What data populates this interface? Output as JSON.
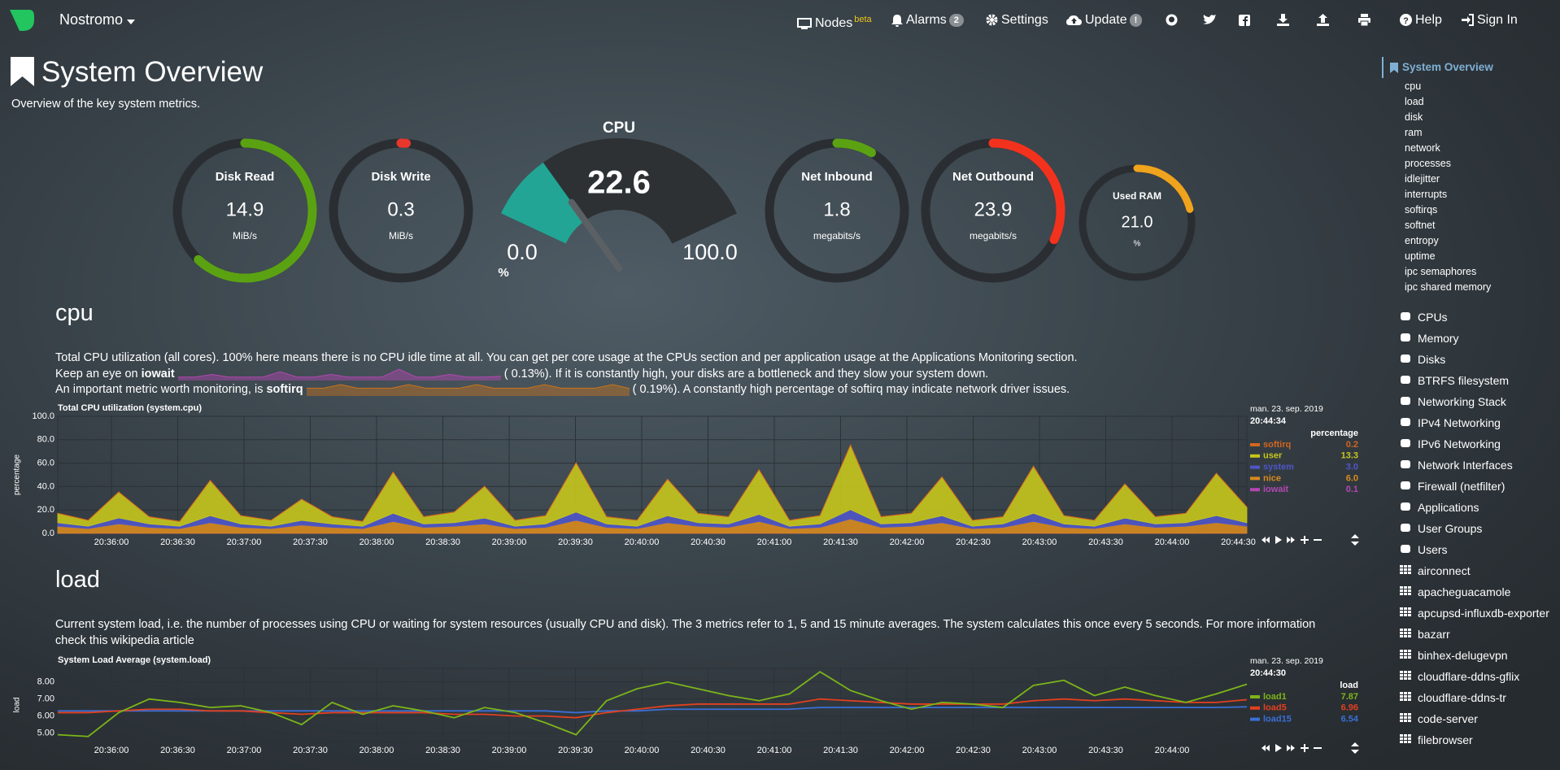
{
  "navbar": {
    "brand": "Nostromo",
    "items": [
      {
        "label": "Nodes",
        "badge": "beta"
      },
      {
        "label": "Alarms",
        "badge": "2"
      },
      {
        "label": "Settings"
      },
      {
        "label": "Update",
        "badge": "!"
      },
      {
        "label": "Help"
      },
      {
        "label": "Sign In"
      }
    ]
  },
  "header": {
    "title": "System Overview",
    "subtitle": "Overview of the key system metrics."
  },
  "gauges": [
    {
      "title": "Disk Read",
      "value": 14.9,
      "units": "MiB/s",
      "max": 24,
      "color": "#5ba212"
    },
    {
      "title": "Disk Write",
      "value": 0.3,
      "units": "MiB/s",
      "max": 24,
      "color": "#e8372c"
    },
    {
      "title": "Net Inbound",
      "value": 1.8,
      "units": "megabits/s",
      "max": 21,
      "color": "#5ba212"
    },
    {
      "title": "Net Outbound",
      "value": 23.9,
      "units": "megabits/s",
      "max": 74.5,
      "color": "#f3321e"
    },
    {
      "title": "Used RAM",
      "value": 21.0,
      "value_label": "21.0",
      "units": "%",
      "max": 100,
      "color": "#f0a31c"
    }
  ],
  "cpu_gauge": {
    "title": "CPU",
    "value": 22.6,
    "min": {
      "value": 0,
      "label": "0.0"
    },
    "max": {
      "value": 100,
      "label": "100.0"
    },
    "units": "%",
    "color": "#22a594"
  },
  "cpu_section": {
    "heading": "cpu",
    "p1": "Total CPU utilization (all cores). 100% here means there is no CPU idle time at all. You can get per core usage at the CPUs section and per application usage at the Applications Monitoring section.",
    "p2": {
      "before": "Keep an eye on ",
      "term": "iowait",
      "color": "#b347b3",
      "sparkline": [
        0.1,
        0.1,
        0.2,
        0.1,
        0.1,
        0.1,
        0.3,
        0.1,
        0.1,
        0.2,
        0.1,
        0.1,
        0.1,
        0.4,
        0.1,
        0.1,
        0.2,
        0.1,
        0.1,
        0.13
      ],
      "after": "( 0.13%). If it is constantly high, your disks are a bottleneck and they slow your system down."
    },
    "p3": {
      "before": "An important metric worth monitoring, is ",
      "term": "softirq",
      "color": "#c8741c",
      "sparkline": [
        0.2,
        0.2,
        0.3,
        0.2,
        0.2,
        0.2,
        0.3,
        0.2,
        0.2,
        0.2,
        0.3,
        0.2,
        0.2,
        0.2,
        0.3,
        0.2,
        0.2,
        0.2,
        0.3,
        0.19
      ],
      "after": "( 0.19%). A constantly high percentage of softirq may indicate network driver issues."
    }
  },
  "cpu_chart": {
    "type": "stacked-area",
    "title": "Total CPU utilization (system.cpu)",
    "ylabel": "percentage",
    "ylim": [
      0,
      100
    ],
    "yticks": [
      {
        "value": 0,
        "label": "0.0"
      },
      {
        "value": 20,
        "label": "20.0"
      },
      {
        "value": 40,
        "label": "40.0"
      },
      {
        "value": 60,
        "label": "60.0"
      },
      {
        "value": 80,
        "label": "80.0"
      },
      {
        "value": 100,
        "label": "100.0"
      }
    ],
    "xticks": [
      "20:36:00",
      "20:36:30",
      "20:37:00",
      "20:37:30",
      "20:38:00",
      "20:38:30",
      "20:39:00",
      "20:39:30",
      "20:40:00",
      "20:40:30",
      "20:41:00",
      "20:41:30",
      "20:42:00",
      "20:42:30",
      "20:43:00",
      "20:43:30",
      "20:44:00",
      "20:44:30"
    ],
    "date": "man. 23. sep. 2019",
    "time": "20:44:34",
    "units": "percentage",
    "series": [
      {
        "name": "softirq",
        "color": "#d2661e",
        "legend_value": "0.2",
        "values": [
          0.2,
          0.2,
          0.3,
          0.2,
          0.2,
          0.3,
          0.2,
          0.2,
          0.2,
          0.2,
          0.2,
          0.3,
          0.2,
          0.2,
          0.3,
          0.2,
          0.2,
          0.3,
          0.2,
          0.2,
          0.3,
          0.2,
          0.2,
          0.3,
          0.2,
          0.2,
          0.4,
          0.2,
          0.2,
          0.3,
          0.2,
          0.2,
          0.3,
          0.2,
          0.2,
          0.3,
          0.2,
          0.2,
          0.3,
          0.2
        ]
      },
      {
        "name": "user",
        "color": "#c6c61c",
        "legend_value": "13.3",
        "values": [
          8,
          5,
          22,
          6,
          4,
          30,
          7,
          5,
          18,
          6,
          4,
          35,
          6,
          9,
          27,
          5,
          7,
          42,
          6,
          5,
          31,
          8,
          6,
          38,
          5,
          7,
          55,
          6,
          8,
          33,
          5,
          6,
          40,
          7,
          5,
          29,
          6,
          8,
          36,
          13.3
        ]
      },
      {
        "name": "system",
        "color": "#4f56c9",
        "legend_value": "3.0",
        "values": [
          3,
          2,
          5,
          3,
          2,
          6,
          3,
          2,
          4,
          3,
          2,
          7,
          3,
          3,
          5,
          2,
          3,
          7,
          3,
          2,
          6,
          3,
          3,
          6,
          2,
          3,
          8,
          3,
          3,
          6,
          2,
          3,
          7,
          3,
          2,
          5,
          3,
          3,
          6,
          3
        ]
      },
      {
        "name": "nice",
        "color": "#d88a1e",
        "legend_value": "6.0",
        "values": [
          6,
          4,
          8,
          5,
          4,
          9,
          5,
          4,
          7,
          5,
          4,
          10,
          5,
          6,
          8,
          4,
          5,
          11,
          5,
          4,
          9,
          6,
          5,
          10,
          4,
          5,
          12,
          5,
          6,
          9,
          4,
          5,
          10,
          5,
          4,
          8,
          5,
          6,
          9,
          6
        ]
      },
      {
        "name": "iowait",
        "color": "#b347b3",
        "legend_value": "0.1",
        "values": [
          0.1,
          0.1,
          0.2,
          0.1,
          0.1,
          0.1,
          0.1,
          0.1,
          0.1,
          0.1,
          0.1,
          0.2,
          0.1,
          0.1,
          0.1,
          0.1,
          0.1,
          0.2,
          0.1,
          0.1,
          0.1,
          0.1,
          0.1,
          0.2,
          0.1,
          0.1,
          0.3,
          0.1,
          0.1,
          0.1,
          0.1,
          0.1,
          0.2,
          0.1,
          0.1,
          0.1,
          0.1,
          0.1,
          0.2,
          0.1
        ]
      }
    ]
  },
  "load_section": {
    "heading": "load",
    "p1": "Current system load, i.e. the number of processes using CPU or waiting for system resources (usually CPU and disk). The 3 metrics refer to 1, 5 and 15 minute averages. The system calculates this once every 5 seconds. For more information check this wikipedia article"
  },
  "load_chart": {
    "type": "line",
    "title": "System Load Average (system.load)",
    "ylabel": "load",
    "ylim": [
      4.5,
      8.8
    ],
    "yticks": [
      {
        "value": 5,
        "label": "5.00"
      },
      {
        "value": 6,
        "label": "6.00"
      },
      {
        "value": 7,
        "label": "7.00"
      },
      {
        "value": 8,
        "label": "8.00"
      }
    ],
    "xticks": [
      "20:36:00",
      "20:36:30",
      "20:37:00",
      "20:37:30",
      "20:38:00",
      "20:38:30",
      "20:39:00",
      "20:39:30",
      "20:40:00",
      "20:40:30",
      "20:41:00",
      "20:41:30",
      "20:42:00",
      "20:42:30",
      "20:43:00",
      "20:43:30",
      "20:44:00"
    ],
    "date": "man. 23. sep. 2019",
    "time": "20:44:30",
    "units": "load",
    "series": [
      {
        "name": "load1",
        "color": "#7cb518",
        "legend_value": "7.87",
        "values": [
          4.9,
          4.8,
          6.2,
          7.0,
          6.8,
          6.5,
          6.6,
          6.2,
          5.5,
          6.8,
          6.1,
          6.6,
          6.3,
          5.9,
          6.5,
          6.2,
          5.6,
          4.9,
          6.9,
          7.6,
          8.0,
          7.6,
          7.2,
          6.9,
          7.3,
          8.6,
          7.5,
          6.9,
          6.4,
          6.8,
          6.7,
          6.5,
          7.8,
          8.1,
          7.2,
          7.7,
          7.2,
          6.8,
          7.3,
          7.87
        ]
      },
      {
        "name": "load5",
        "color": "#e2401f",
        "legend_value": "6.96",
        "values": [
          6.2,
          6.2,
          6.3,
          6.4,
          6.4,
          6.3,
          6.3,
          6.2,
          6.1,
          6.2,
          6.2,
          6.2,
          6.2,
          6.1,
          6.1,
          6.0,
          6.0,
          5.9,
          6.2,
          6.4,
          6.6,
          6.7,
          6.7,
          6.7,
          6.7,
          7.0,
          6.9,
          6.8,
          6.7,
          6.7,
          6.7,
          6.7,
          6.9,
          7.0,
          6.9,
          7.0,
          6.9,
          6.8,
          6.8,
          6.96
        ]
      },
      {
        "name": "load15",
        "color": "#3b6fd6",
        "legend_value": "6.54",
        "values": [
          6.3,
          6.3,
          6.3,
          6.3,
          6.3,
          6.3,
          6.3,
          6.3,
          6.3,
          6.3,
          6.3,
          6.3,
          6.3,
          6.3,
          6.3,
          6.3,
          6.3,
          6.2,
          6.3,
          6.3,
          6.4,
          6.4,
          6.4,
          6.4,
          6.4,
          6.5,
          6.5,
          6.5,
          6.5,
          6.5,
          6.5,
          6.5,
          6.5,
          6.5,
          6.5,
          6.5,
          6.5,
          6.5,
          6.5,
          6.54
        ]
      }
    ]
  },
  "sidebar": {
    "active": "System Overview",
    "subitems": [
      "cpu",
      "load",
      "disk",
      "ram",
      "network",
      "processes",
      "idlejitter",
      "interrupts",
      "softirqs",
      "softnet",
      "entropy",
      "uptime",
      "ipc semaphores",
      "ipc shared memory"
    ],
    "sections": [
      "CPUs",
      "Memory",
      "Disks",
      "BTRFS filesystem",
      "Networking Stack",
      "IPv4 Networking",
      "IPv6 Networking",
      "Network Interfaces",
      "Firewall (netfilter)",
      "Applications",
      "User Groups",
      "Users",
      "airconnect",
      "apacheguacamole",
      "apcupsd-influxdb-exporter",
      "bazarr",
      "binhex-delugevpn",
      "cloudflare-ddns-gflix",
      "cloudflare-ddns-tr",
      "code-server",
      "filebrowser"
    ]
  }
}
